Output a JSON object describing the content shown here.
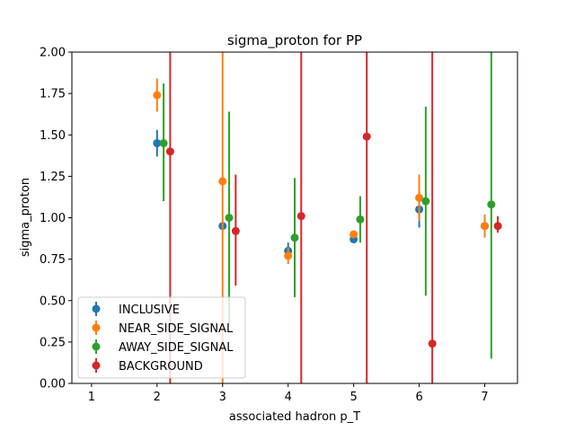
{
  "chart_data": {
    "type": "scatter",
    "title": "sigma_proton for PP",
    "xlabel": "associated hadron p_T",
    "ylabel": "sigma_proton",
    "xlim": [
      0.7,
      7.5
    ],
    "ylim": [
      0.0,
      2.0
    ],
    "xticks": [
      "1",
      "2",
      "3",
      "4",
      "5",
      "6",
      "7"
    ],
    "yticks": [
      "0.00",
      "0.25",
      "0.50",
      "0.75",
      "1.00",
      "1.25",
      "1.50",
      "1.75",
      "2.00"
    ],
    "grid": false,
    "legend_position": "lower-left",
    "series": [
      {
        "name": "INCLUSIVE",
        "color": "#1f77b4",
        "points": [
          {
            "x": 2.0,
            "y": 1.45,
            "lo": 1.37,
            "hi": 1.53
          },
          {
            "x": 3.0,
            "y": 0.95,
            "lo": 0.95,
            "hi": 0.95
          },
          {
            "x": 4.0,
            "y": 0.8,
            "lo": 0.75,
            "hi": 0.85
          },
          {
            "x": 5.0,
            "y": 0.87,
            "lo": 0.86,
            "hi": 0.88
          },
          {
            "x": 6.0,
            "y": 1.05,
            "lo": 0.94,
            "hi": 1.15
          },
          {
            "x": 7.0,
            "y": 0.95,
            "lo": 0.93,
            "hi": 0.97
          }
        ]
      },
      {
        "name": "NEAR_SIDE_SIGNAL",
        "color": "#ff7f0e",
        "points": [
          {
            "x": 2.0,
            "y": 1.74,
            "lo": 1.64,
            "hi": 1.84
          },
          {
            "x": 3.0,
            "y": 1.22,
            "lo": 0.0,
            "hi": 2.0
          },
          {
            "x": 4.0,
            "y": 0.77,
            "lo": 0.72,
            "hi": 0.82
          },
          {
            "x": 5.0,
            "y": 0.9,
            "lo": 0.88,
            "hi": 0.92
          },
          {
            "x": 6.0,
            "y": 1.12,
            "lo": 0.98,
            "hi": 1.26
          },
          {
            "x": 7.0,
            "y": 0.95,
            "lo": 0.88,
            "hi": 1.02
          }
        ]
      },
      {
        "name": "AWAY_SIDE_SIGNAL",
        "color": "#2ca02c",
        "points": [
          {
            "x": 2.1,
            "y": 1.45,
            "lo": 1.1,
            "hi": 1.81
          },
          {
            "x": 3.1,
            "y": 1.0,
            "lo": 0.36,
            "hi": 1.64
          },
          {
            "x": 4.1,
            "y": 0.88,
            "lo": 0.52,
            "hi": 1.24
          },
          {
            "x": 5.1,
            "y": 0.99,
            "lo": 0.85,
            "hi": 1.13
          },
          {
            "x": 6.1,
            "y": 1.1,
            "lo": 0.53,
            "hi": 1.67
          },
          {
            "x": 7.1,
            "y": 1.08,
            "lo": 0.15,
            "hi": 2.0
          }
        ]
      },
      {
        "name": "BACKGROUND",
        "color": "#d62728",
        "points": [
          {
            "x": 2.2,
            "y": 1.4,
            "lo": 0.0,
            "hi": 2.0
          },
          {
            "x": 3.2,
            "y": 0.92,
            "lo": 0.59,
            "hi": 1.26
          },
          {
            "x": 4.2,
            "y": 1.01,
            "lo": 0.0,
            "hi": 2.0
          },
          {
            "x": 5.2,
            "y": 1.49,
            "lo": 0.0,
            "hi": 2.0
          },
          {
            "x": 6.2,
            "y": 0.24,
            "lo": 0.0,
            "hi": 2.0
          },
          {
            "x": 7.2,
            "y": 0.95,
            "lo": 0.91,
            "hi": 1.01
          }
        ]
      }
    ]
  }
}
